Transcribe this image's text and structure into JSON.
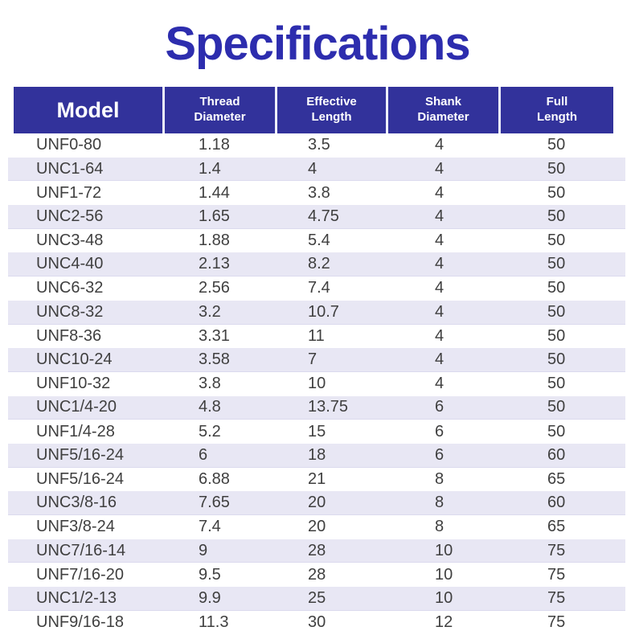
{
  "page": {
    "title": "Specifications"
  },
  "colors": {
    "title": "#2D2DAE",
    "header_bg": "#32329B",
    "header_text": "#FFFFFF",
    "row_alt": "#E8E7F4",
    "cell_text": "#3F3F3F"
  },
  "table": {
    "field_names": [
      "model",
      "thread-diameter",
      "effective-length",
      "shank-diameter",
      "full-length"
    ],
    "columns": [
      {
        "lines": [
          "Model"
        ]
      },
      {
        "lines": [
          "Thread",
          "Diameter"
        ]
      },
      {
        "lines": [
          "Effective",
          "Length"
        ]
      },
      {
        "lines": [
          "Shank",
          "Diameter"
        ]
      },
      {
        "lines": [
          "Full",
          "Length"
        ]
      }
    ],
    "rows": [
      [
        "UNF0-80",
        "1.18",
        "3.5",
        "4",
        "50"
      ],
      [
        "UNC1-64",
        "1.4",
        "4",
        "4",
        "50"
      ],
      [
        "UNF1-72",
        "1.44",
        "3.8",
        "4",
        "50"
      ],
      [
        "UNC2-56",
        "1.65",
        "4.75",
        "4",
        "50"
      ],
      [
        "UNC3-48",
        "1.88",
        "5.4",
        "4",
        "50"
      ],
      [
        "UNC4-40",
        "2.13",
        "8.2",
        "4",
        "50"
      ],
      [
        "UNC6-32",
        "2.56",
        "7.4",
        "4",
        "50"
      ],
      [
        "UNC8-32",
        "3.2",
        "10.7",
        "4",
        "50"
      ],
      [
        "UNF8-36",
        "3.31",
        "11",
        "4",
        "50"
      ],
      [
        "UNC10-24",
        "3.58",
        "7",
        "4",
        "50"
      ],
      [
        "UNF10-32",
        "3.8",
        "10",
        "4",
        "50"
      ],
      [
        "UNC1/4-20",
        "4.8",
        "13.75",
        "6",
        "50"
      ],
      [
        "UNF1/4-28",
        "5.2",
        "15",
        "6",
        "50"
      ],
      [
        "UNF5/16-24",
        "6",
        "18",
        "6",
        "60"
      ],
      [
        "UNF5/16-24",
        "6.88",
        "21",
        "8",
        "65"
      ],
      [
        "UNC3/8-16",
        "7.65",
        "20",
        "8",
        "60"
      ],
      [
        "UNF3/8-24",
        "7.4",
        "20",
        "8",
        "65"
      ],
      [
        "UNC7/16-14",
        "9",
        "28",
        "10",
        "75"
      ],
      [
        "UNF7/16-20",
        "9.5",
        "28",
        "10",
        "75"
      ],
      [
        "UNC1/2-13",
        "9.9",
        "25",
        "10",
        "75"
      ],
      [
        "UNF9/16-18",
        "11.3",
        "30",
        "12",
        "75"
      ]
    ]
  }
}
